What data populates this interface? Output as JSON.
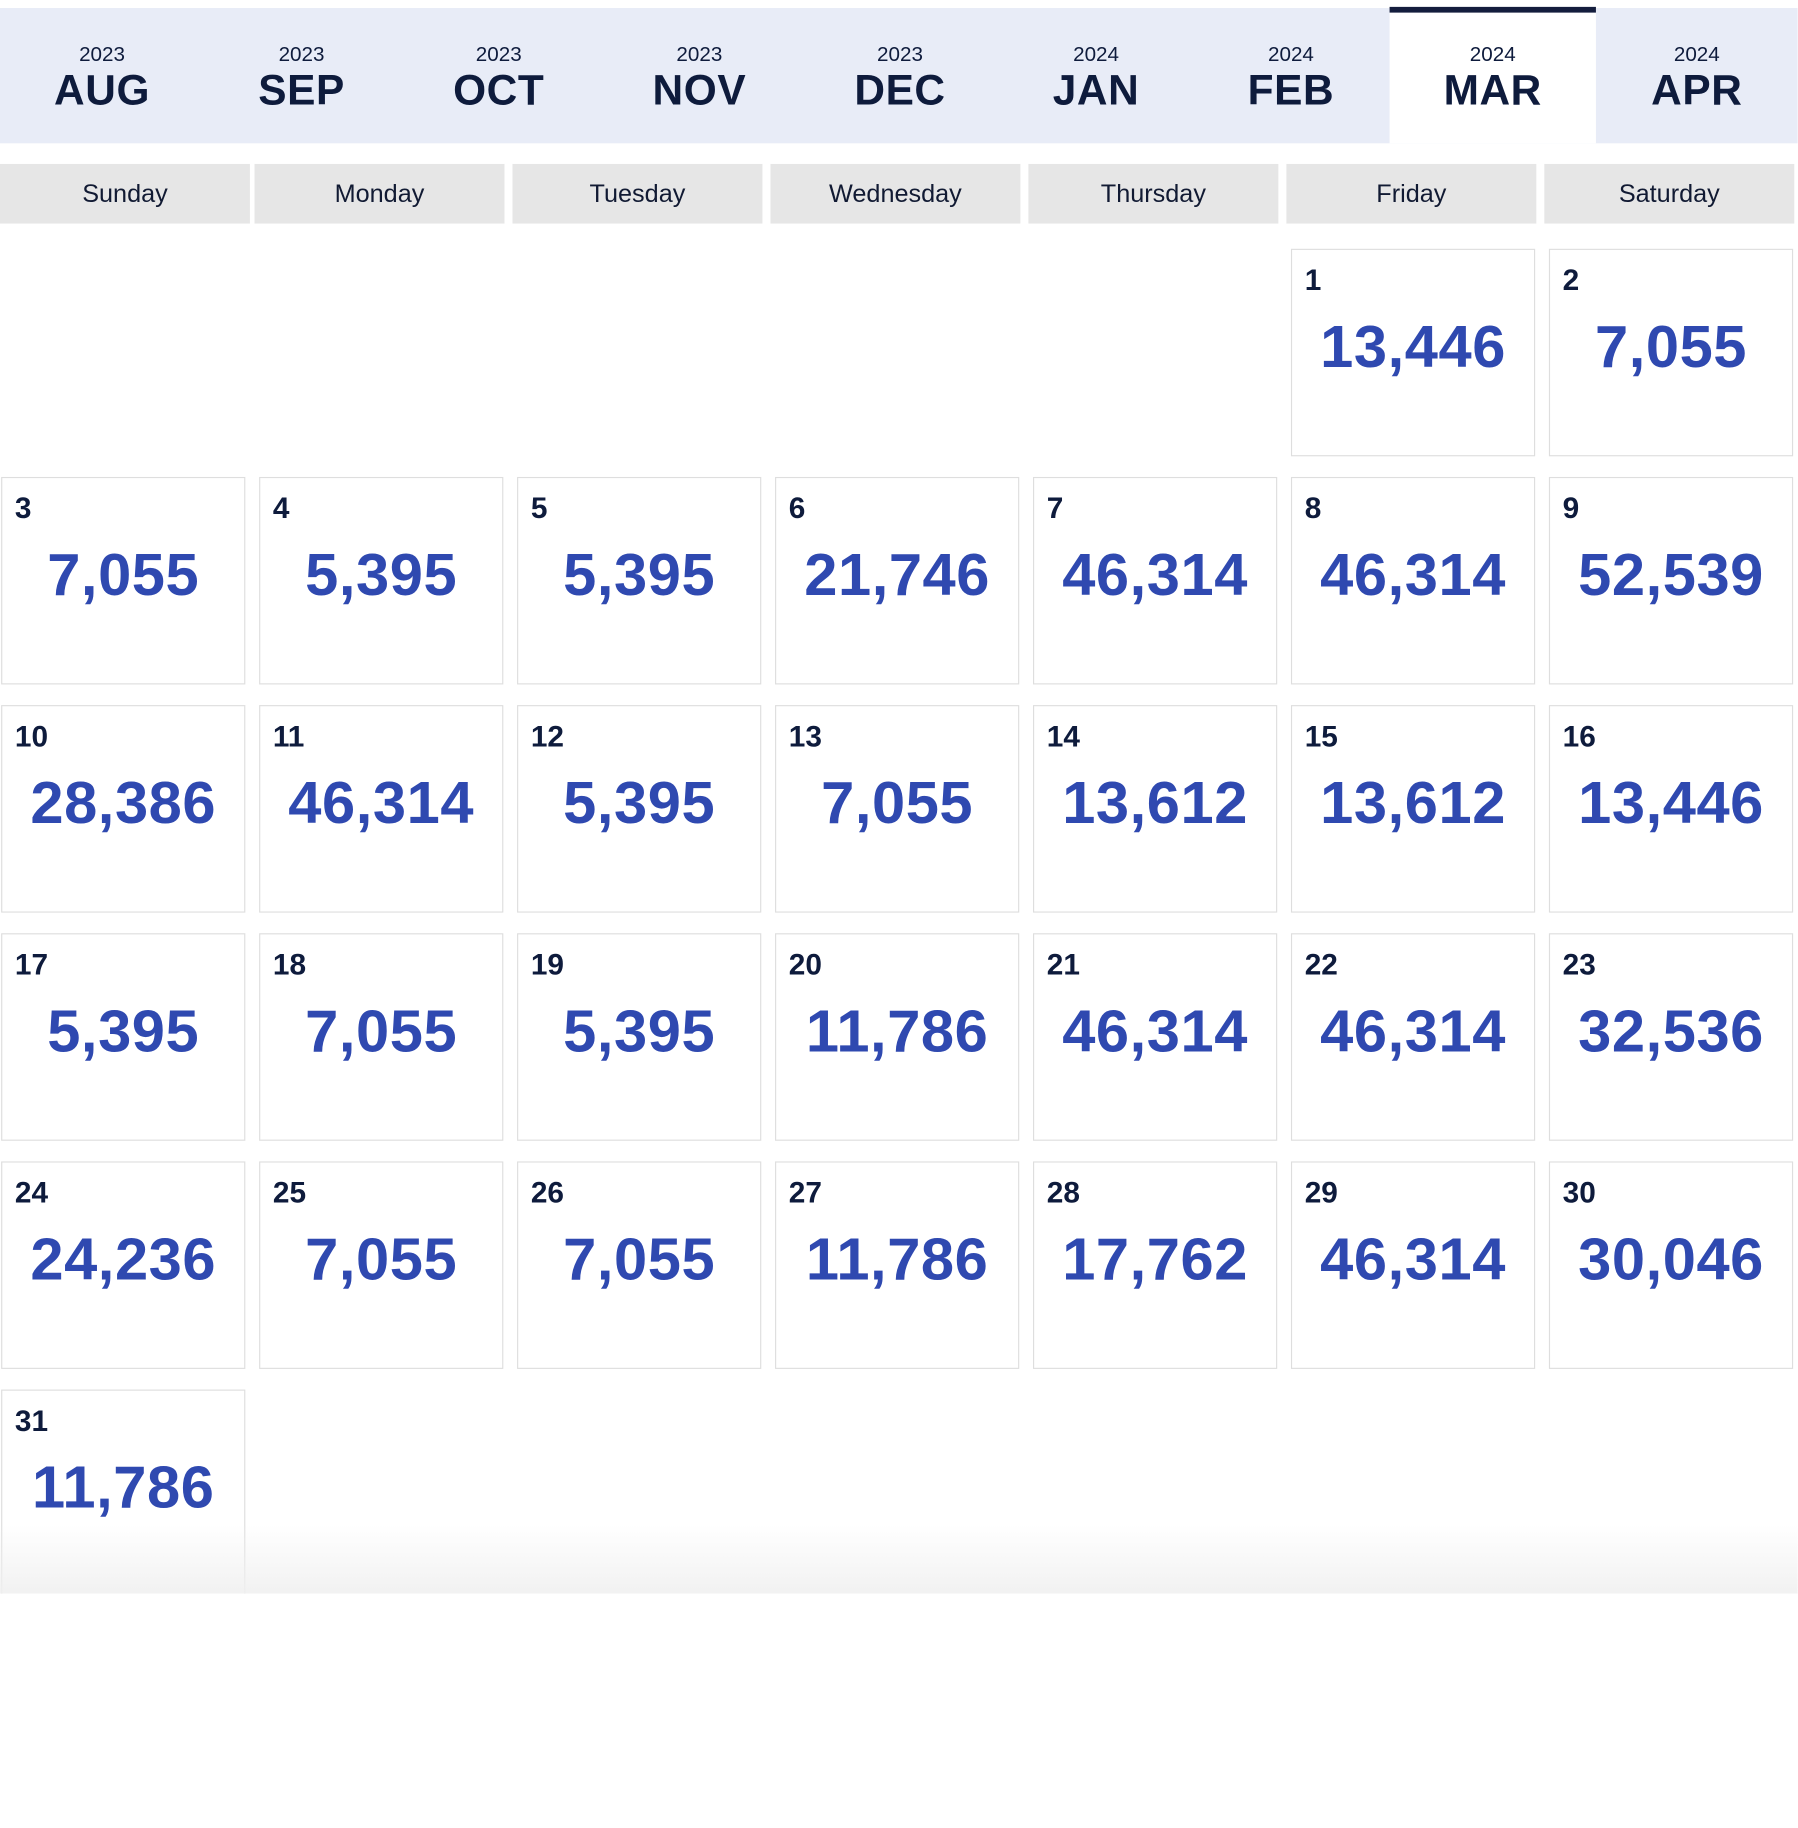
{
  "months": [
    {
      "year": "2023",
      "name": "AUG"
    },
    {
      "year": "2023",
      "name": "SEP"
    },
    {
      "year": "2023",
      "name": "OCT"
    },
    {
      "year": "2023",
      "name": "NOV"
    },
    {
      "year": "2023",
      "name": "DEC"
    },
    {
      "year": "2024",
      "name": "JAN"
    },
    {
      "year": "2024",
      "name": "FEB"
    },
    {
      "year": "2024",
      "name": "MAR",
      "active": true
    },
    {
      "year": "2024",
      "name": "APR"
    }
  ],
  "weekdays": [
    "Sunday",
    "Monday",
    "Tuesday",
    "Wednesday",
    "Thursday",
    "Friday",
    "Saturday"
  ],
  "days": [
    {
      "day": "1",
      "price": "13,446"
    },
    {
      "day": "2",
      "price": "7,055"
    },
    {
      "day": "3",
      "price": "7,055"
    },
    {
      "day": "4",
      "price": "5,395"
    },
    {
      "day": "5",
      "price": "5,395"
    },
    {
      "day": "6",
      "price": "21,746"
    },
    {
      "day": "7",
      "price": "46,314"
    },
    {
      "day": "8",
      "price": "46,314"
    },
    {
      "day": "9",
      "price": "52,539"
    },
    {
      "day": "10",
      "price": "28,386"
    },
    {
      "day": "11",
      "price": "46,314"
    },
    {
      "day": "12",
      "price": "5,395"
    },
    {
      "day": "13",
      "price": "7,055"
    },
    {
      "day": "14",
      "price": "13,612"
    },
    {
      "day": "15",
      "price": "13,612"
    },
    {
      "day": "16",
      "price": "13,446"
    },
    {
      "day": "17",
      "price": "5,395"
    },
    {
      "day": "18",
      "price": "7,055"
    },
    {
      "day": "19",
      "price": "5,395"
    },
    {
      "day": "20",
      "price": "11,786"
    },
    {
      "day": "21",
      "price": "46,314"
    },
    {
      "day": "22",
      "price": "46,314"
    },
    {
      "day": "23",
      "price": "32,536"
    },
    {
      "day": "24",
      "price": "24,236"
    },
    {
      "day": "25",
      "price": "7,055"
    },
    {
      "day": "26",
      "price": "7,055"
    },
    {
      "day": "27",
      "price": "11,786"
    },
    {
      "day": "28",
      "price": "17,762"
    },
    {
      "day": "29",
      "price": "46,314"
    },
    {
      "day": "30",
      "price": "30,046"
    },
    {
      "day": "31",
      "price": "11,786"
    }
  ],
  "colors": {
    "accent": "#2f49b0",
    "tab_background": "#e8ecf7",
    "active_indicator": "#141d3d",
    "header_background": "#e6e6e6"
  }
}
